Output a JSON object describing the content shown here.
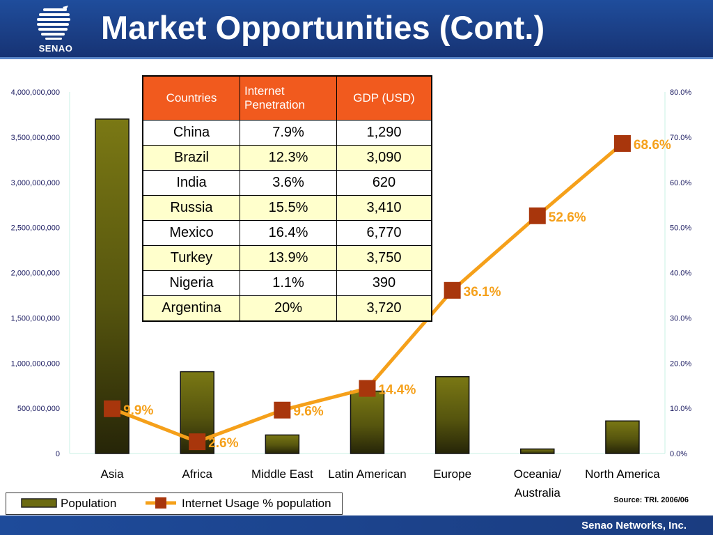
{
  "header": {
    "title": "Market Opportunities (Cont.)",
    "logo_text": "SENAO",
    "logo_icon": "globe-icon"
  },
  "table": {
    "headers": [
      "Countries",
      "Internet Penetration",
      "GDP (USD)"
    ],
    "rows": [
      [
        "China",
        "7.9%",
        "1,290"
      ],
      [
        "Brazil",
        "12.3%",
        "3,090"
      ],
      [
        "India",
        "3.6%",
        "620"
      ],
      [
        "Russia",
        "15.5%",
        "3,410"
      ],
      [
        "Mexico",
        "16.4%",
        "6,770"
      ],
      [
        "Turkey",
        "13.9%",
        "3,750"
      ],
      [
        "Nigeria",
        "1.1%",
        "390"
      ],
      [
        "Argentina",
        "20%",
        "3,720"
      ]
    ],
    "header_color": "#f15a1e",
    "alt_row_color": "#ffffcc"
  },
  "chart_data": {
    "type": "bar",
    "categories": [
      "Asia",
      "Africa",
      "Middle East",
      "Latin American",
      "Europe",
      "Oceania/\nAustralia",
      "North America"
    ],
    "series": [
      {
        "name": "Population",
        "type": "bar",
        "axis": "left",
        "values": [
          3700000000,
          905000000,
          205000000,
          690000000,
          850000000,
          50000000,
          360000000
        ],
        "color": "#6b6a12"
      },
      {
        "name": "Internet Usage % population",
        "type": "line",
        "axis": "right",
        "values": [
          9.9,
          2.6,
          9.6,
          14.4,
          36.1,
          52.6,
          68.6
        ],
        "data_labels": [
          "9.9%",
          "2.6%",
          "9.6%",
          "14.4%",
          "36.1%",
          "52.6%",
          "68.6%"
        ],
        "color": "#f5a01a",
        "marker_color": "#a8360c"
      }
    ],
    "y_left": {
      "lim": [
        0,
        4000000000
      ],
      "ticks": [
        0,
        500000000,
        1000000000,
        1500000000,
        2000000000,
        2500000000,
        3000000000,
        3500000000,
        4000000000
      ],
      "tick_labels": [
        "0",
        "500,000,000",
        "1,000,000,000",
        "1,500,000,000",
        "2,000,000,000",
        "2,500,000,000",
        "3,000,000,000",
        "3,500,000,000",
        "4,000,000,000"
      ]
    },
    "y_right": {
      "lim": [
        0,
        80
      ],
      "ticks": [
        0,
        10,
        20,
        30,
        40,
        50,
        60,
        70,
        80
      ],
      "tick_labels": [
        "0.0%",
        "10.0%",
        "20.0%",
        "30.0%",
        "40.0%",
        "50.0%",
        "60.0%",
        "70.0%",
        "80.0%"
      ]
    },
    "title": "",
    "xlabel": "",
    "ylabel": "",
    "grid": false,
    "legend_position": "bottom-left"
  },
  "legend": {
    "population_label": "Population",
    "usage_label": "Internet Usage % population"
  },
  "source": "Source: TRI. 2006/06",
  "footer": "Senao Networks, Inc."
}
